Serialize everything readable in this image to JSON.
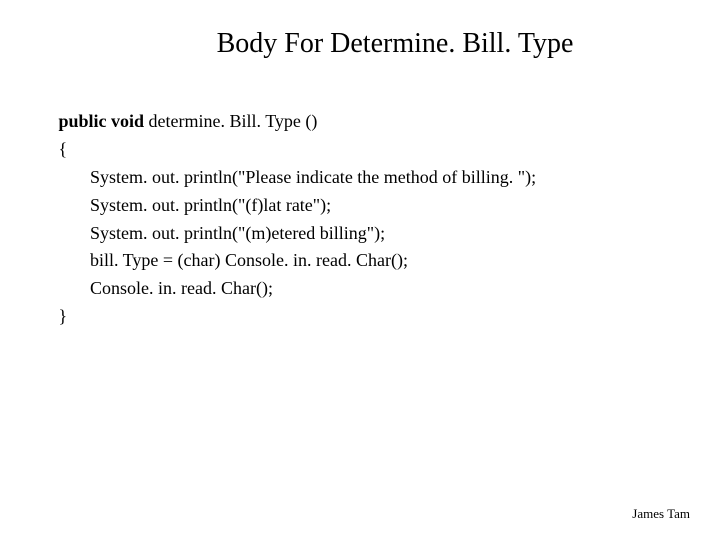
{
  "slide": {
    "title": "Body For Determine. Bill. Type",
    "code": {
      "line1_prefix": " public void",
      "line1_rest": " determine. Bill. Type ()",
      "line2": " {",
      "line3": "System. out. println(\"Please indicate the method of billing. \");",
      "line4": "System. out. println(\"(f)lat rate\");",
      "line5": "System. out. println(\"(m)etered billing\");",
      "line6": "bill. Type = (char) Console. in. read. Char();",
      "line7": "Console. in. read. Char();",
      "line8": " }"
    },
    "footer": "James Tam"
  },
  "styles": {
    "background_color": "#ffffff",
    "text_color": "#000000",
    "title_fontsize": 28,
    "code_fontsize": 18,
    "footer_fontsize": 13,
    "font_family": "Times New Roman"
  }
}
